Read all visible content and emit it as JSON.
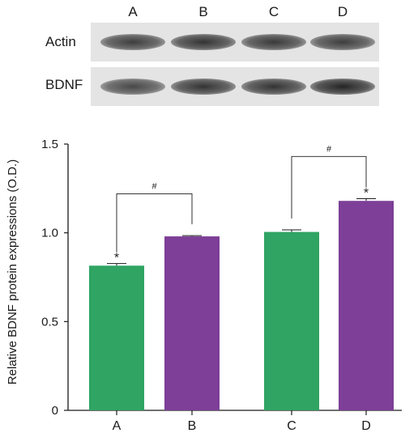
{
  "blot": {
    "lanes": [
      "A",
      "B",
      "C",
      "D"
    ],
    "rows": [
      {
        "label": "Actin",
        "intensity": [
          0.8,
          0.85,
          0.82,
          0.8
        ]
      },
      {
        "label": "BDNF",
        "intensity": [
          0.75,
          0.85,
          0.85,
          0.92
        ]
      }
    ]
  },
  "chart_data": {
    "type": "bar",
    "categories": [
      "A",
      "B",
      "C",
      "D"
    ],
    "values": [
      0.815,
      0.98,
      1.005,
      1.18
    ],
    "errors": [
      0.012,
      0.004,
      0.012,
      0.012
    ],
    "colors": [
      "#2fa463",
      "#7d3f97",
      "#2fa463",
      "#7d3f97"
    ],
    "ylabel": "Relative BDNF protein expressions (O.D.)",
    "ylim": [
      0,
      1.5
    ],
    "yticks": [
      "0",
      "0.5",
      "1.0",
      "1.5"
    ],
    "significance": [
      {
        "from": 0,
        "to": 1,
        "mark": "#",
        "bracket_y": 1.22
      },
      {
        "from": 2,
        "to": 3,
        "mark": "#",
        "bracket_y": 1.43
      }
    ],
    "stars": [
      {
        "index": 0,
        "mark": "*"
      },
      {
        "index": 3,
        "mark": "*"
      }
    ]
  }
}
